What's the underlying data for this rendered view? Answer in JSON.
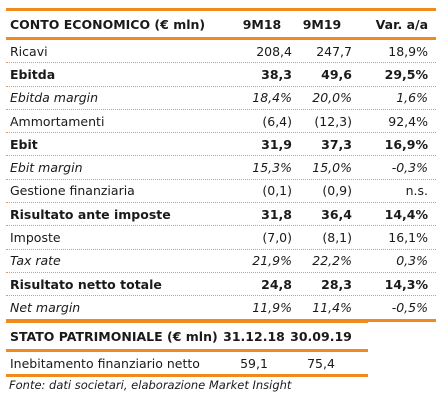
{
  "income": {
    "header": [
      "CONTO ECONOMICO (€ mln)",
      "9M18",
      "9M19",
      "Var. a/a"
    ],
    "rows": [
      {
        "label": "Ricavi",
        "v1": "208,4",
        "v2": "247,7",
        "v3": "18,9%",
        "style": ""
      },
      {
        "label": "Ebitda",
        "v1": "38,3",
        "v2": "49,6",
        "v3": "29,5%",
        "style": "bold"
      },
      {
        "label": "Ebitda margin",
        "v1": "18,4%",
        "v2": "20,0%",
        "v3": "1,6%",
        "style": "ital"
      },
      {
        "label": "Ammortamenti",
        "v1": "(6,4)",
        "v2": "(12,3)",
        "v3": "92,4%",
        "style": ""
      },
      {
        "label": "Ebit",
        "v1": "31,9",
        "v2": "37,3",
        "v3": "16,9%",
        "style": "bold"
      },
      {
        "label": "Ebit margin",
        "v1": "15,3%",
        "v2": "15,0%",
        "v3": "-0,3%",
        "style": "ital"
      },
      {
        "label": "Gestione finanziaria",
        "v1": "(0,1)",
        "v2": "(0,9)",
        "v3": "n.s.",
        "style": ""
      },
      {
        "label": "Risultato ante imposte",
        "v1": "31,8",
        "v2": "36,4",
        "v3": "14,4%",
        "style": "bold"
      },
      {
        "label": "Imposte",
        "v1": "(7,0)",
        "v2": "(8,1)",
        "v3": "16,1%",
        "style": ""
      },
      {
        "label": "Tax rate",
        "v1": "21,9%",
        "v2": "22,2%",
        "v3": "0,3%",
        "style": "ital"
      },
      {
        "label": "Risultato netto totale",
        "v1": "24,8",
        "v2": "28,3",
        "v3": "14,3%",
        "style": "bold"
      },
      {
        "label": "Net margin",
        "v1": "11,9%",
        "v2": "11,4%",
        "v3": "-0,5%",
        "style": "ital"
      }
    ]
  },
  "balance": {
    "header": [
      "STATO PATRIMONIALE (€ mln)",
      "31.12.18",
      "30.09.19"
    ],
    "rows": [
      {
        "label": "Inebitamento finanziario netto",
        "v1": "59,1",
        "v2": "75,4"
      }
    ]
  },
  "source": "Fonte: dati societari, elaborazione Market Insight",
  "colors": {
    "accent": "#f08a1c",
    "dotted": "#e59a4f"
  }
}
